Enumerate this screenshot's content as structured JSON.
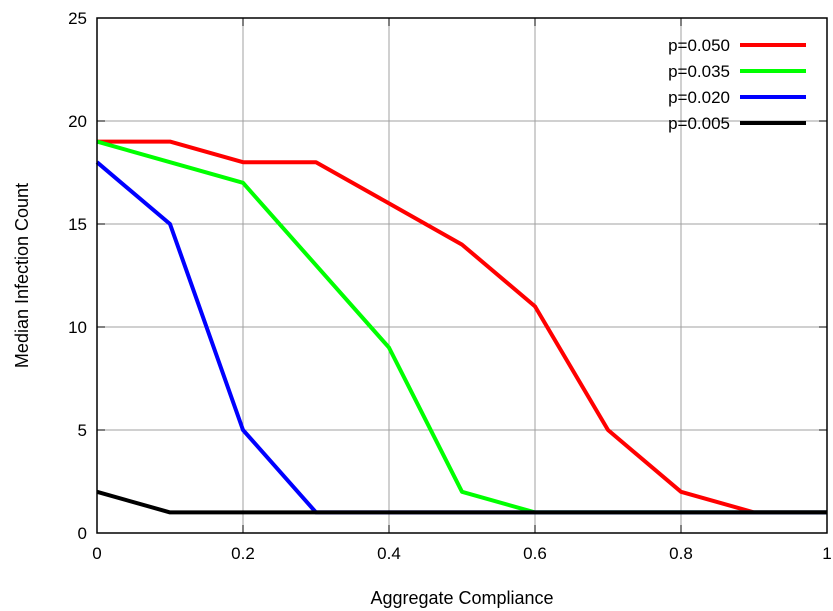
{
  "chart_data": {
    "type": "line",
    "xlabel": "Aggregate Compliance",
    "ylabel": "Median Infection Count",
    "xlim": [
      0,
      1
    ],
    "ylim": [
      0,
      25
    ],
    "xticks": [
      "0",
      "0.2",
      "0.4",
      "0.6",
      "0.8",
      "1"
    ],
    "yticks": [
      "0",
      "5",
      "10",
      "15",
      "20",
      "25"
    ],
    "x": [
      0,
      0.1,
      0.2,
      0.3,
      0.4,
      0.5,
      0.6,
      0.7,
      0.8,
      0.9,
      1.0
    ],
    "grid": true,
    "legend_position": "top-right",
    "series": [
      {
        "name": "p=0.050",
        "color": "#ff0000",
        "values": [
          19,
          19,
          18,
          18,
          16,
          14,
          11,
          5,
          2,
          1,
          1
        ]
      },
      {
        "name": "p=0.035",
        "color": "#00ff00",
        "values": [
          19,
          18,
          17,
          13,
          9,
          2,
          1,
          1,
          1,
          1,
          1
        ]
      },
      {
        "name": "p=0.020",
        "color": "#0000ff",
        "values": [
          18,
          15,
          5,
          1,
          1,
          1,
          1,
          1,
          1,
          1,
          1
        ]
      },
      {
        "name": "p=0.005",
        "color": "#000000",
        "values": [
          2,
          1,
          1,
          1,
          1,
          1,
          1,
          1,
          1,
          1,
          1
        ]
      }
    ]
  }
}
